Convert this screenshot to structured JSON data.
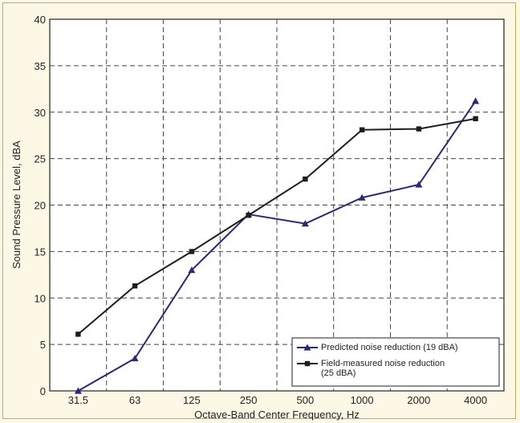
{
  "chart_data": {
    "type": "line",
    "xlabel": "Octave-Band Center Frequency, Hz",
    "ylabel": "Sound Pressure Level, dBA",
    "categories": [
      "31.5",
      "63",
      "125",
      "250",
      "500",
      "1000",
      "2000",
      "4000"
    ],
    "ylim": [
      0,
      40
    ],
    "yticks": [
      0,
      5,
      10,
      15,
      20,
      25,
      30,
      35,
      40
    ],
    "grid": true,
    "legend_position": "bottom-right",
    "series": [
      {
        "name": "Predicted noise reduction (19 dBA)",
        "marker": "triangle",
        "color": "#2a2a6e",
        "values": [
          0,
          3.5,
          13,
          19,
          18,
          20.8,
          22.2,
          31.2
        ]
      },
      {
        "name": "Field-measured noise reduction (25 dBA)",
        "name_lines": [
          "Field-measured noise reduction",
          "(25 dBA)"
        ],
        "marker": "square",
        "color": "#1e1e1e",
        "values": [
          6.1,
          11.3,
          15,
          18.9,
          22.8,
          28.1,
          28.2,
          29.3
        ]
      }
    ]
  }
}
